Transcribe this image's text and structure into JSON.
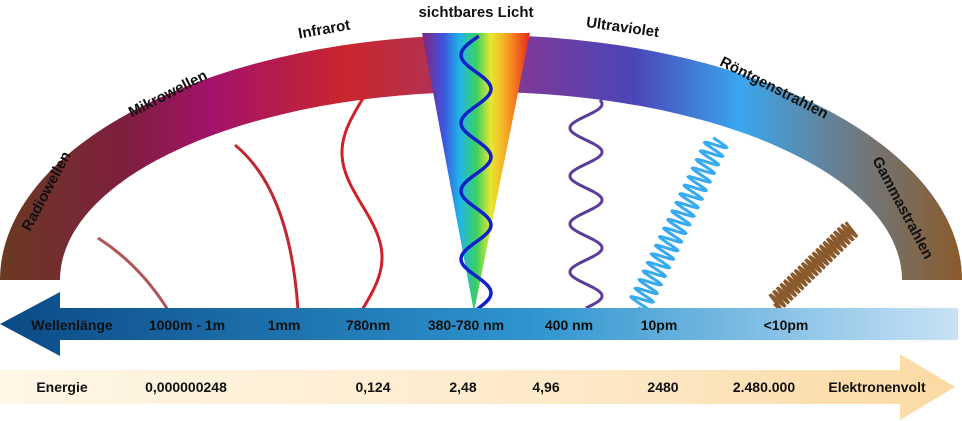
{
  "bands": [
    {
      "label": "Radiowellen"
    },
    {
      "label": "Mikrowellen"
    },
    {
      "label": "Infrarot"
    },
    {
      "label": "sichtbares Licht"
    },
    {
      "label": "Ultraviolet"
    },
    {
      "label": "Röntgenstrahlen"
    },
    {
      "label": "Gammastrahlen"
    }
  ],
  "wavelength": {
    "axis_label": "Wellenlänge",
    "values": [
      "1000m - 1m",
      "1mm",
      "780nm",
      "380-780 nm",
      "400 nm",
      "10pm",
      "<10pm"
    ]
  },
  "energy": {
    "axis_label": "Energie",
    "unit": "Elektronenvolt",
    "values": [
      "0,000000248",
      "0,124",
      "2,48",
      "4,96",
      "2480",
      "2.480.000"
    ]
  },
  "colors": {
    "radio": "#6b3a24",
    "micro": "#a0106a",
    "infrared": "#c8202e",
    "uv": "#5c3d9a",
    "xray": "#3aaaf0",
    "gamma": "#8a5a2c",
    "visible_wave": "#1020c8",
    "arrow_dark": "#0b4f8a",
    "energy_arrow": "#fbe6c4"
  }
}
